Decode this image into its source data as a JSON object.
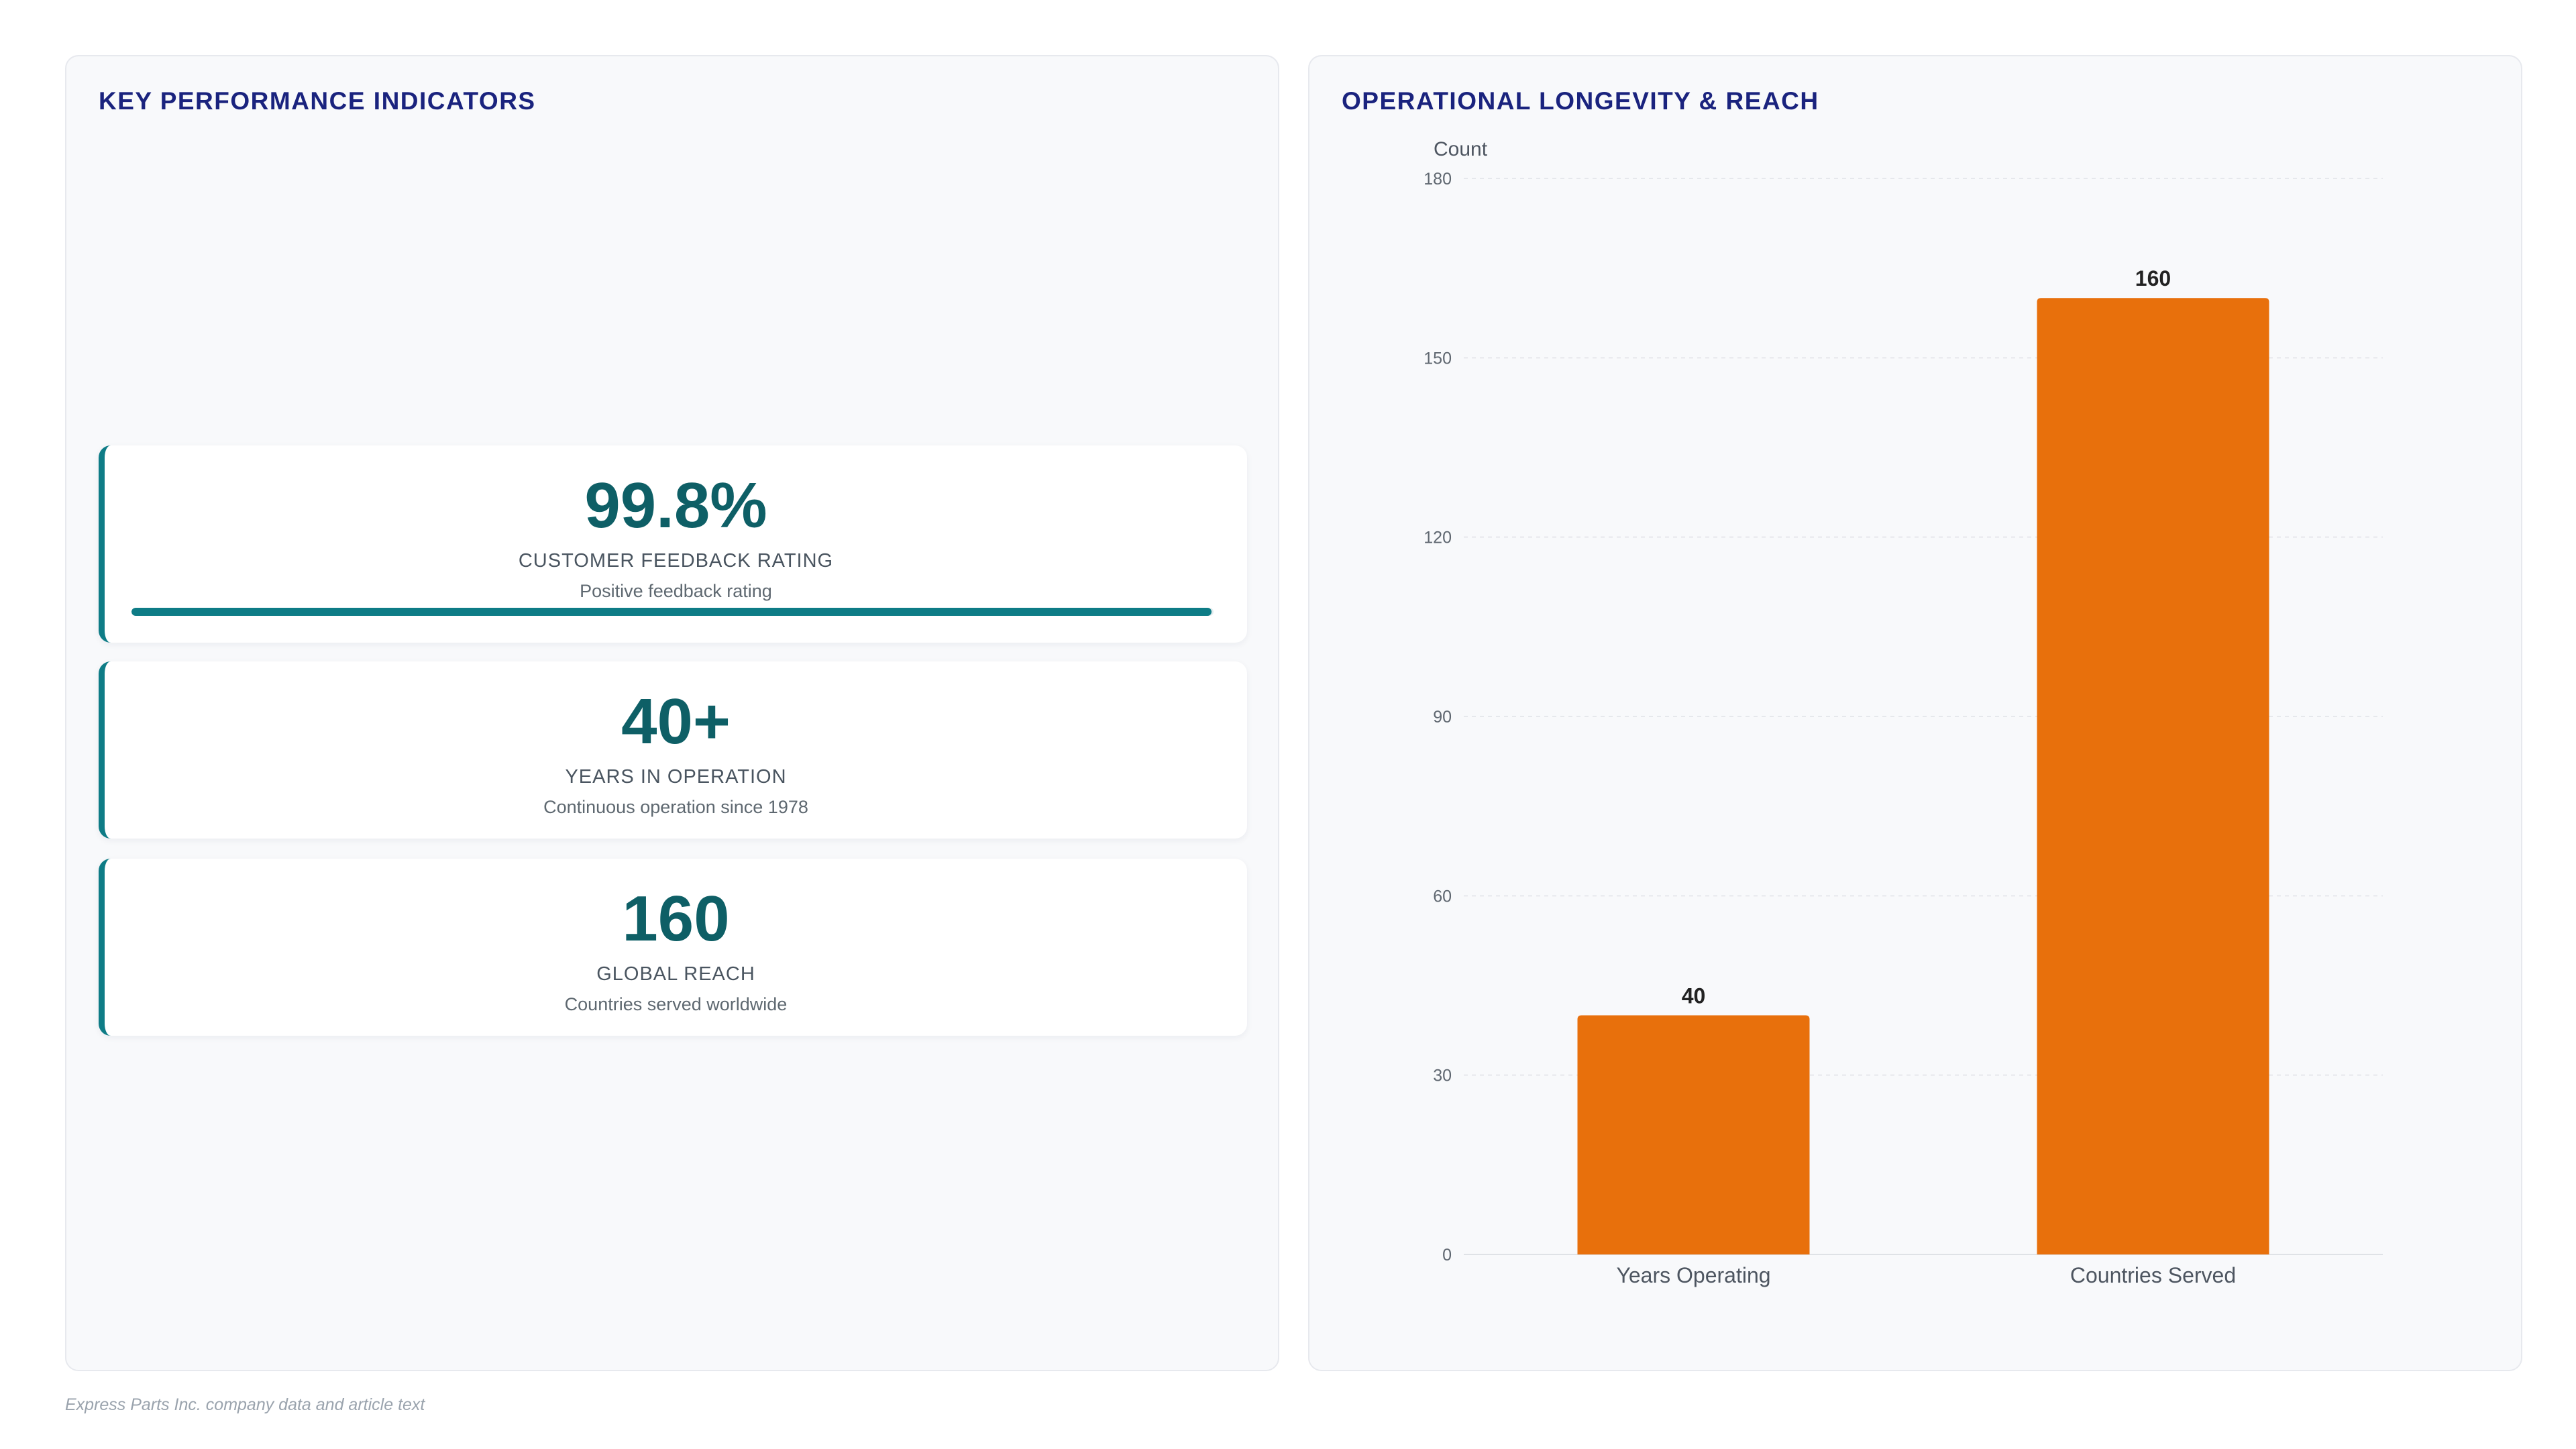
{
  "kpi_panel": {
    "title": "KEY PERFORMANCE INDICATORS",
    "cards": [
      {
        "value": "99.8%",
        "label": "CUSTOMER FEEDBACK RATING",
        "description": "Positive feedback rating",
        "progress_percent": 99.8
      },
      {
        "value": "40+",
        "label": "YEARS IN OPERATION",
        "description": "Continuous operation since 1978"
      },
      {
        "value": "160",
        "label": "GLOBAL REACH",
        "description": "Countries served worldwide"
      }
    ]
  },
  "chart_panel": {
    "title": "OPERATIONAL LONGEVITY & REACH"
  },
  "chart_data": {
    "type": "bar",
    "title": "OPERATIONAL LONGEVITY & REACH",
    "categories": [
      "Years Operating",
      "Countries Served"
    ],
    "values": [
      40,
      160
    ],
    "xlabel": "",
    "ylabel": "Count",
    "ylim": [
      0,
      180
    ],
    "yticks": [
      0,
      30,
      60,
      90,
      120,
      150,
      180
    ],
    "grid": true,
    "bar_color": "#e8700c",
    "data_labels": true
  },
  "colors": {
    "accent": "#0e7c86",
    "kpi_value": "#0e5f66",
    "title": "#1a237e",
    "bar": "#e8700c"
  },
  "footnote": "Express Parts Inc. company data and article text"
}
